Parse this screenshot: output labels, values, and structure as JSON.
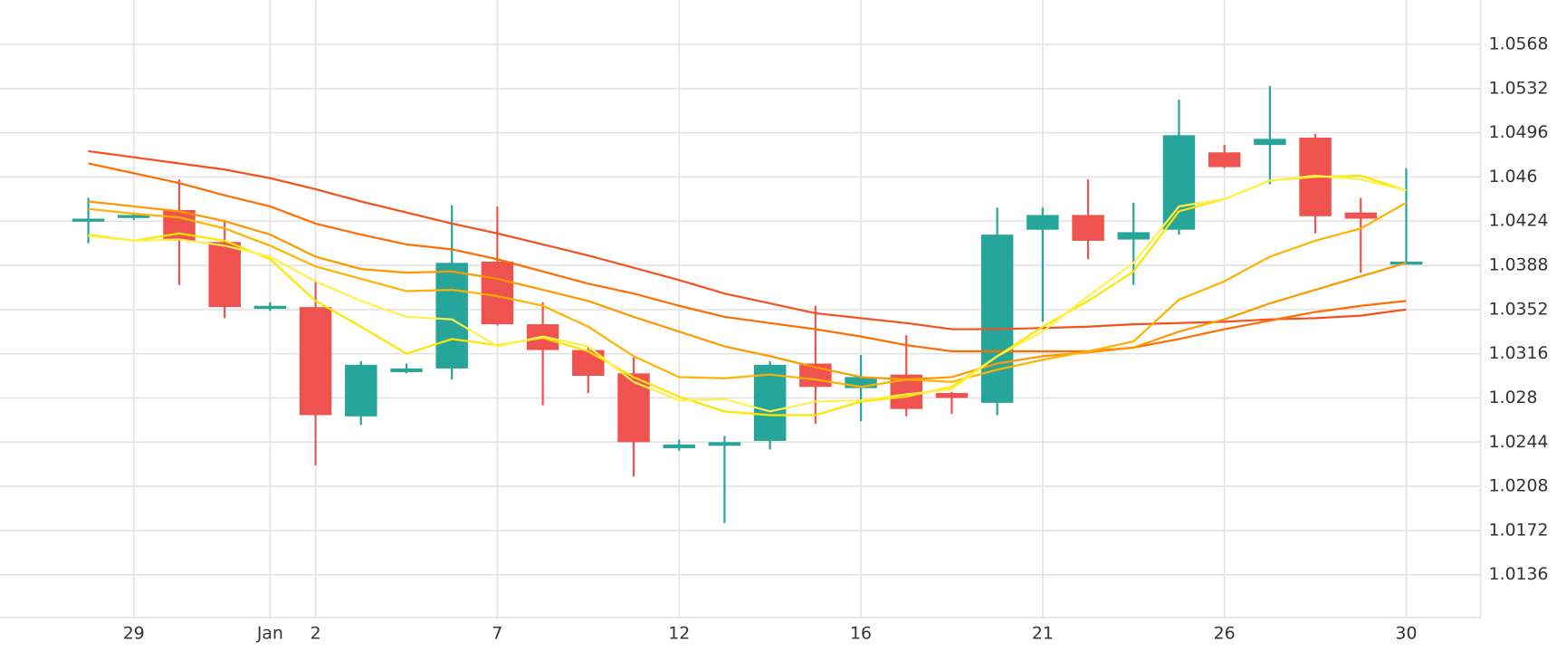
{
  "chart_data": {
    "type": "candlestick",
    "categories": [
      null,
      "29",
      null,
      null,
      "Jan",
      "2",
      null,
      null,
      null,
      "7",
      null,
      null,
      null,
      "12",
      null,
      null,
      null,
      "16",
      null,
      null,
      null,
      "21",
      null,
      null,
      null,
      "26",
      null,
      null,
      null,
      "30"
    ],
    "open": [
      1.0425,
      1.0428,
      1.0433,
      1.0407,
      1.0354,
      1.0354,
      1.0265,
      1.0301,
      1.0304,
      1.0391,
      1.034,
      1.0319,
      1.03,
      1.0239,
      1.0241,
      1.0245,
      1.0308,
      1.0288,
      1.0299,
      1.0284,
      1.0276,
      1.0417,
      1.0429,
      1.0409,
      1.0417,
      1.048,
      1.0486,
      1.0492,
      1.0431,
      1.039
    ],
    "high": [
      1.0443,
      1.0431,
      1.0458,
      1.0425,
      1.0358,
      1.0375,
      1.031,
      1.0308,
      1.0437,
      1.0436,
      1.0358,
      1.0322,
      1.0313,
      1.0246,
      1.0249,
      1.031,
      1.0355,
      1.0315,
      1.0331,
      1.0285,
      1.0435,
      1.0435,
      1.0458,
      1.0439,
      1.0523,
      1.0486,
      1.0534,
      1.0495,
      1.0443,
      1.0467
    ],
    "low": [
      1.0406,
      1.0425,
      1.0372,
      1.0345,
      1.0351,
      1.0225,
      1.0258,
      1.03,
      1.0295,
      1.0339,
      1.0274,
      1.0284,
      1.0216,
      1.0237,
      1.0178,
      1.0238,
      1.0259,
      1.0261,
      1.0265,
      1.0267,
      1.0266,
      1.0342,
      1.0393,
      1.0372,
      1.0413,
      1.0467,
      1.0454,
      1.0414,
      1.0382,
      1.0389
    ],
    "close": [
      1.0426,
      1.0429,
      1.0408,
      1.0354,
      1.0355,
      1.0266,
      1.0307,
      1.0304,
      1.039,
      1.034,
      1.0319,
      1.0298,
      1.0244,
      1.0242,
      1.0244,
      1.0307,
      1.0289,
      1.0297,
      1.0271,
      1.028,
      1.0413,
      1.0429,
      1.0408,
      1.0415,
      1.0494,
      1.0468,
      1.0491,
      1.0428,
      1.0426,
      1.0391
    ],
    "up_color": "#26a69a",
    "down_color": "#ef5350",
    "overlays": [
      {
        "color": "#f4511e",
        "values": [
          1.0481,
          1.0476,
          1.0471,
          1.0466,
          1.0459,
          1.045,
          1.044,
          1.0431,
          1.0422,
          1.0414,
          1.0405,
          1.0396,
          1.0386,
          1.0376,
          1.0365,
          1.0357,
          1.0349,
          1.0345,
          1.0341,
          1.0336,
          1.0336,
          1.0337,
          1.0338,
          1.034,
          1.0341,
          1.0342,
          1.0344,
          1.0345,
          1.0347,
          1.0352
        ]
      },
      {
        "color": "#ff6d00",
        "values": [
          1.0471,
          1.0463,
          1.0455,
          1.0445,
          1.0436,
          1.0422,
          1.0413,
          1.0405,
          1.0401,
          1.0393,
          1.0383,
          1.0373,
          1.0365,
          1.0355,
          1.0346,
          1.0341,
          1.0336,
          1.033,
          1.0323,
          1.0318,
          1.0318,
          1.0318,
          1.0318,
          1.0321,
          1.0328,
          1.0336,
          1.0343,
          1.035,
          1.0355,
          1.0359
        ]
      },
      {
        "color": "#ff9800",
        "values": [
          1.044,
          1.0436,
          1.0432,
          1.0424,
          1.0413,
          1.0395,
          1.0385,
          1.0382,
          1.0383,
          1.0377,
          1.0368,
          1.0359,
          1.0346,
          1.0334,
          1.0322,
          1.0314,
          1.0305,
          1.0297,
          1.0295,
          1.0297,
          1.0308,
          1.0314,
          1.0317,
          1.0321,
          1.0334,
          1.0344,
          1.0357,
          1.0368,
          1.0379,
          1.039
        ]
      },
      {
        "color": "#ffb300",
        "values": [
          1.0434,
          1.043,
          1.0427,
          1.0418,
          1.0404,
          1.0387,
          1.0377,
          1.0367,
          1.0368,
          1.0363,
          1.0355,
          1.0338,
          1.0314,
          1.0297,
          1.0296,
          1.0299,
          1.0295,
          1.0289,
          1.0295,
          1.0293,
          1.0303,
          1.0311,
          1.0318,
          1.0326,
          1.036,
          1.0375,
          1.0395,
          1.0408,
          1.0418,
          1.0439
        ]
      },
      {
        "color": "#ffe600",
        "values": [
          1.0413,
          1.0408,
          1.0414,
          1.0408,
          1.0393,
          1.0359,
          1.0338,
          1.0316,
          1.0328,
          1.0323,
          1.0329,
          1.0318,
          1.0297,
          1.0281,
          1.0269,
          1.0266,
          1.0266,
          1.0277,
          1.0281,
          1.0289,
          1.0314,
          1.0338,
          1.0359,
          1.0383,
          1.0432,
          1.0442,
          1.0457,
          1.046,
          1.0461,
          1.0449
        ]
      },
      {
        "color": "#fff04d",
        "values": [
          1.0412,
          1.0408,
          1.0409,
          1.0404,
          1.0395,
          1.0375,
          1.0359,
          1.0346,
          1.0344,
          1.0322,
          1.033,
          1.0322,
          1.0293,
          1.0278,
          1.0279,
          1.0269,
          1.0277,
          1.0278,
          1.0283,
          1.0287,
          1.0314,
          1.0334,
          1.0363,
          1.039,
          1.0436,
          1.0442,
          1.0457,
          1.0461,
          1.0458,
          1.0449
        ]
      }
    ],
    "ylim": [
      1.0101,
      1.0604
    ],
    "yticks": [
      1.0136,
      1.0172,
      1.0208,
      1.0244,
      1.028,
      1.0316,
      1.0352,
      1.0388,
      1.0424,
      1.046,
      1.0496,
      1.0532,
      1.0568
    ],
    "grid": true
  }
}
